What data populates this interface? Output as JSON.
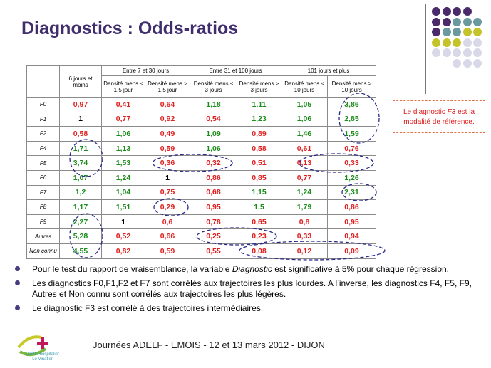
{
  "title": "Diagnostics : Odds-ratios",
  "colors": {
    "title": "#3f2d6e",
    "red": "#e01e1e",
    "green": "#1a8c1a",
    "dots_purple": "#4a2a6a",
    "dots_teal": "#6a9aa0",
    "dots_lime": "#c4c42a",
    "dots_light": "#d8d8e8"
  },
  "table": {
    "header": {
      "col1": "6 jours et moins",
      "groups": [
        "Entre 7 et 30 jours",
        "Entre 31 et 100 jours",
        "101 jours et plus"
      ],
      "sub": [
        "Densité mens ≤ 1,5 jour",
        "Densité mens > 1,5 jour",
        "Densité mens ≤ 3 jours",
        "Densité mens > 3 jours",
        "Densité mens ≤ 10 jours",
        "Densité mens > 10 jours"
      ]
    },
    "rows": [
      {
        "label": "F0",
        "values": [
          "0,97",
          "0,41",
          "0,64",
          "1,18",
          "1,11",
          "1,05",
          "3,86"
        ],
        "colors": [
          "red",
          "red",
          "red",
          "green",
          "green",
          "green",
          "green"
        ]
      },
      {
        "label": "F1",
        "values": [
          "1",
          "0,77",
          "0,92",
          "0,54",
          "1,23",
          "1,06",
          "2,85"
        ],
        "colors": [
          "black",
          "red",
          "red",
          "red",
          "green",
          "green",
          "green"
        ]
      },
      {
        "label": "F2",
        "values": [
          "0,58",
          "1,06",
          "0,49",
          "1,09",
          "0,89",
          "1,46",
          "1,59"
        ],
        "colors": [
          "red",
          "green",
          "red",
          "green",
          "red",
          "green",
          "green"
        ]
      },
      {
        "label": "F4",
        "values": [
          "1,71",
          "1,13",
          "0,59",
          "1,06",
          "0,58",
          "0,61",
          "0,76"
        ],
        "colors": [
          "green",
          "green",
          "red",
          "green",
          "red",
          "red",
          "red"
        ]
      },
      {
        "label": "F5",
        "values": [
          "3,74",
          "1,53",
          "0,36",
          "0,32",
          "0,51",
          "0,13",
          "0,33"
        ],
        "colors": [
          "green",
          "green",
          "red",
          "red",
          "red",
          "red",
          "red"
        ]
      },
      {
        "label": "F6",
        "values": [
          "1,07",
          "1,24",
          "1",
          "0,86",
          "0,85",
          "0,77",
          "1,26"
        ],
        "colors": [
          "green",
          "green",
          "black",
          "red",
          "red",
          "red",
          "green"
        ]
      },
      {
        "label": "F7",
        "values": [
          "1,2",
          "1,04",
          "0,75",
          "0,68",
          "1,15",
          "1,24",
          "2,31"
        ],
        "colors": [
          "green",
          "green",
          "red",
          "red",
          "green",
          "green",
          "green"
        ]
      },
      {
        "label": "F8",
        "values": [
          "1,17",
          "1,51",
          "0,29",
          "0,95",
          "1,5",
          "1,79",
          "0,86"
        ],
        "colors": [
          "green",
          "green",
          "red",
          "red",
          "green",
          "green",
          "red"
        ]
      },
      {
        "label": "F9",
        "values": [
          "2,27",
          "1",
          "0,6",
          "0,78",
          "0,65",
          "0,8",
          "0,95"
        ],
        "colors": [
          "green",
          "black",
          "red",
          "red",
          "red",
          "red",
          "red"
        ]
      },
      {
        "label": "Autres",
        "values": [
          "5,28",
          "0,52",
          "0,66",
          "0,25",
          "0,23",
          "0,33",
          "0,94"
        ],
        "colors": [
          "green",
          "red",
          "red",
          "red",
          "red",
          "red",
          "red"
        ]
      },
      {
        "label": "Non connu",
        "values": [
          "4,55",
          "0,82",
          "0,59",
          "0,55",
          "0,08",
          "0,12",
          "0,09"
        ],
        "colors": [
          "green",
          "red",
          "red",
          "red",
          "red",
          "red",
          "red"
        ]
      }
    ]
  },
  "note": {
    "prefix": "Le diagnostic ",
    "em": "F3",
    "suffix": " est la modalité de référence."
  },
  "bullets": [
    {
      "pre": "Pour le test du rapport de vraisemblance, la variable ",
      "em": "Diagnostic",
      "post": " est significative à 5% pour chaque régression."
    },
    {
      "pre": "Les diagnostics F0,F1,F2 et F7 sont corrélés aux trajectoires les plus lourdes. A l’inverse, les diagnostics F4, F5, F9, Autres et Non connu sont corrélés aux trajectoires les plus légères.",
      "em": "",
      "post": ""
    },
    {
      "pre": "Le diagnostic F3 est corrélé à des trajectoires intermédiaires.",
      "em": "",
      "post": ""
    }
  ],
  "footer": "Journées ADELF - EMOIS - 12 et 13 mars 2012 - DIJON",
  "logo": {
    "line1": "Centre hospitalier",
    "line2": "Le Vinatier"
  }
}
